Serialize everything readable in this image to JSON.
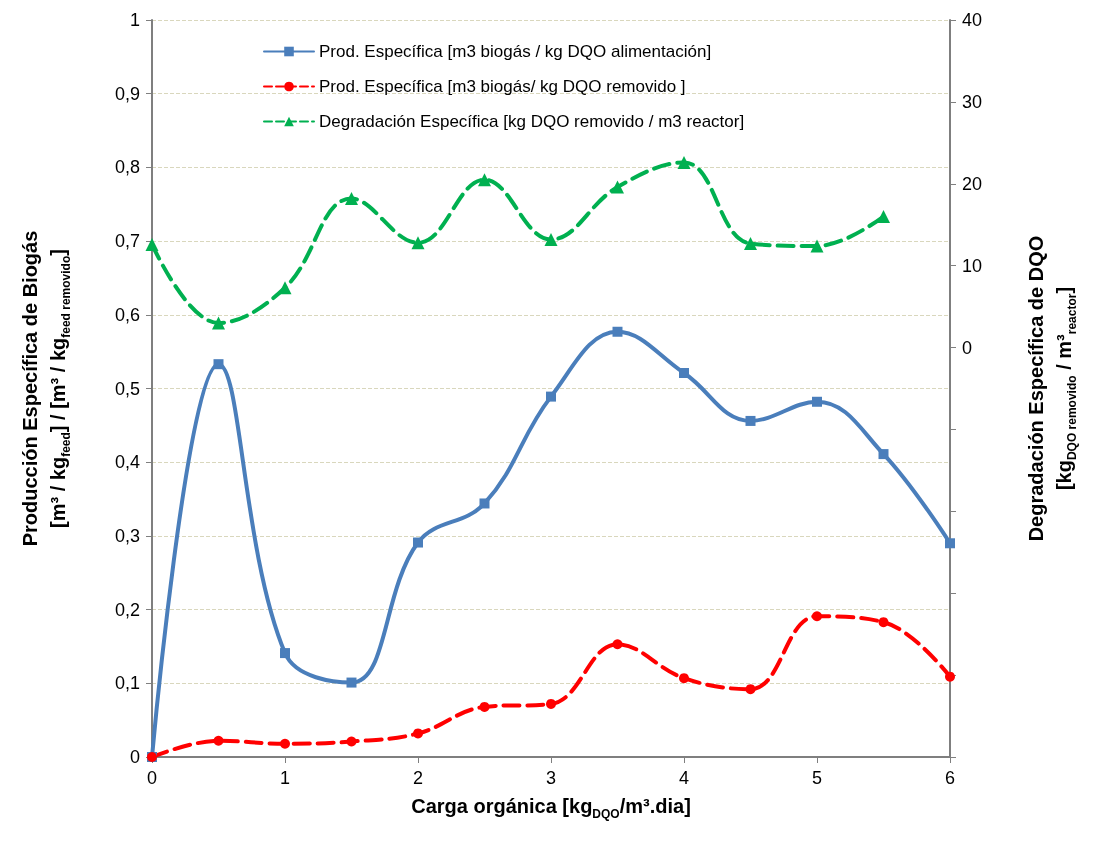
{
  "chart_data": {
    "type": "line",
    "xlabel": "Carga orgánica [kg$_{DQO}$/m³.dia]",
    "ylabel": "Producción Específica de Biogás\n[m³ / kg$_{feed}$] / [m³ / kg$_{feed removido}$]",
    "y2label": "Degradación Específica de DQO\n[kg$_{DQO removido}$ / m³$_{reactor}$]",
    "x": [
      0,
      0.5,
      1,
      1.5,
      2,
      2.5,
      3,
      3.5,
      4,
      4.5,
      5,
      5.5,
      6
    ],
    "series": [
      {
        "name": "Prod. Específica [m3 biogás / kg DQO alimentación]",
        "color": "#4a7ebb",
        "marker": "square",
        "line_style": "solid",
        "values": [
          0,
          0.533,
          0.141,
          0.101,
          0.291,
          0.344,
          0.489,
          0.577,
          0.521,
          0.456,
          0.482,
          0.411,
          0.29
        ]
      },
      {
        "name": "Prod. Específica [m3 biogás/ kg DQO removido ]",
        "color": "#ff0000",
        "marker": "circle",
        "line_style": "dashed",
        "values": [
          0,
          0.022,
          0.018,
          0.021,
          0.032,
          0.068,
          0.072,
          0.153,
          0.107,
          0.092,
          0.191,
          0.183,
          0.109
        ]
      },
      {
        "name": "Degradación Específica [kg DQO removido / m3 reactor]",
        "color": "#00b050",
        "marker": "triangle",
        "line_style": "dashed",
        "axis": "y2",
        "x": [
          0,
          0.5,
          1,
          1.5,
          2,
          2.5,
          3,
          3.5,
          4,
          4.5,
          5,
          5.5
        ],
        "values": [
          12.6,
          3.0,
          7.3,
          18.2,
          12.8,
          20.5,
          13.2,
          19.6,
          22.6,
          12.7,
          12.4,
          16.0
        ]
      }
    ],
    "xlim": [
      0,
      6
    ],
    "xticks": [
      0,
      1,
      2,
      3,
      4,
      5,
      6
    ],
    "ylim": [
      0,
      1
    ],
    "yticks": [
      0,
      {
        "value": 0.1,
        "label": "0,1"
      },
      {
        "value": 0.2,
        "label": "0,2"
      },
      {
        "value": 0.3,
        "label": "0,3"
      },
      {
        "value": 0.4,
        "label": "0,4"
      },
      {
        "value": 0.5,
        "label": "0,5"
      },
      {
        "value": 0.6,
        "label": "0,6"
      },
      {
        "value": 0.7,
        "label": "0,7"
      },
      {
        "value": 0.8,
        "label": "0,8"
      },
      {
        "value": 0.9,
        "label": "0,9"
      },
      1
    ],
    "y2lim": [
      -50,
      40
    ],
    "y2ticks": [
      {
        "value": -50,
        "label": null
      },
      {
        "value": -40,
        "label": null
      },
      {
        "value": -30,
        "label": null
      },
      {
        "value": -20,
        "label": null
      },
      {
        "value": -10,
        "label": null
      },
      0,
      10,
      20,
      30,
      40
    ],
    "grid": "y",
    "legend": "top"
  }
}
